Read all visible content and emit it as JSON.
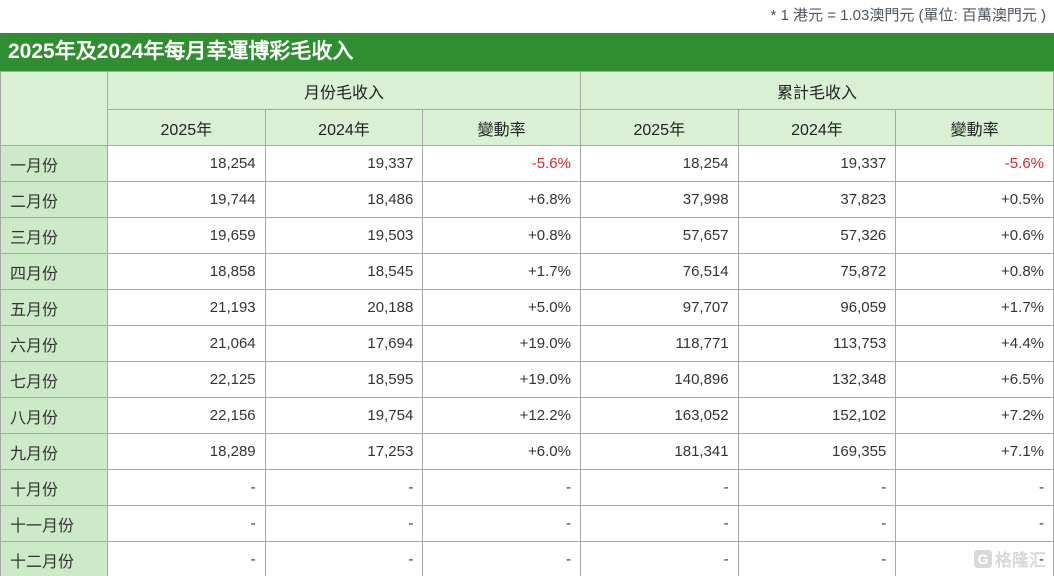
{
  "note": "* 1 港元 = 1.03澳門元 (單位: 百萬澳門元 )",
  "title": "2025年及2024年每月幸運博彩毛收入",
  "table": {
    "groups": [
      {
        "label": "月份毛收入"
      },
      {
        "label": "累計毛收入"
      }
    ],
    "sub_headers": [
      "2025年",
      "2024年",
      "變動率",
      "2025年",
      "2024年",
      "變動率"
    ],
    "rows": [
      {
        "month": "一月份",
        "cells": [
          "18,254",
          "19,337",
          "-5.6%",
          "18,254",
          "19,337",
          "-5.6%"
        ]
      },
      {
        "month": "二月份",
        "cells": [
          "19,744",
          "18,486",
          "+6.8%",
          "37,998",
          "37,823",
          "+0.5%"
        ]
      },
      {
        "month": "三月份",
        "cells": [
          "19,659",
          "19,503",
          "+0.8%",
          "57,657",
          "57,326",
          "+0.6%"
        ]
      },
      {
        "month": "四月份",
        "cells": [
          "18,858",
          "18,545",
          "+1.7%",
          "76,514",
          "75,872",
          "+0.8%"
        ]
      },
      {
        "month": "五月份",
        "cells": [
          "21,193",
          "20,188",
          "+5.0%",
          "97,707",
          "96,059",
          "+1.7%"
        ]
      },
      {
        "month": "六月份",
        "cells": [
          "21,064",
          "17,694",
          "+19.0%",
          "118,771",
          "113,753",
          "+4.4%"
        ]
      },
      {
        "month": "七月份",
        "cells": [
          "22,125",
          "18,595",
          "+19.0%",
          "140,896",
          "132,348",
          "+6.5%"
        ]
      },
      {
        "month": "八月份",
        "cells": [
          "22,156",
          "19,754",
          "+12.2%",
          "163,052",
          "152,102",
          "+7.2%"
        ]
      },
      {
        "month": "九月份",
        "cells": [
          "18,289",
          "17,253",
          "+6.0%",
          "181,341",
          "169,355",
          "+7.1%"
        ]
      },
      {
        "month": "十月份",
        "cells": [
          "-",
          "-",
          "-",
          "-",
          "-",
          "-"
        ]
      },
      {
        "month": "十一月份",
        "cells": [
          "-",
          "-",
          "-",
          "-",
          "-",
          "-"
        ]
      },
      {
        "month": "十二月份",
        "cells": [
          "-",
          "-",
          "-",
          "-",
          "-",
          "-"
        ]
      }
    ]
  },
  "watermark": {
    "logo_letter": "G",
    "text": "格隆汇"
  },
  "colors": {
    "title_bar_bg": "#2f8e2f",
    "header_bg": "#d9f0d5",
    "month_cell_bg": "#cdeac8",
    "negative": "#e62222",
    "border": "#a8a8a8"
  }
}
